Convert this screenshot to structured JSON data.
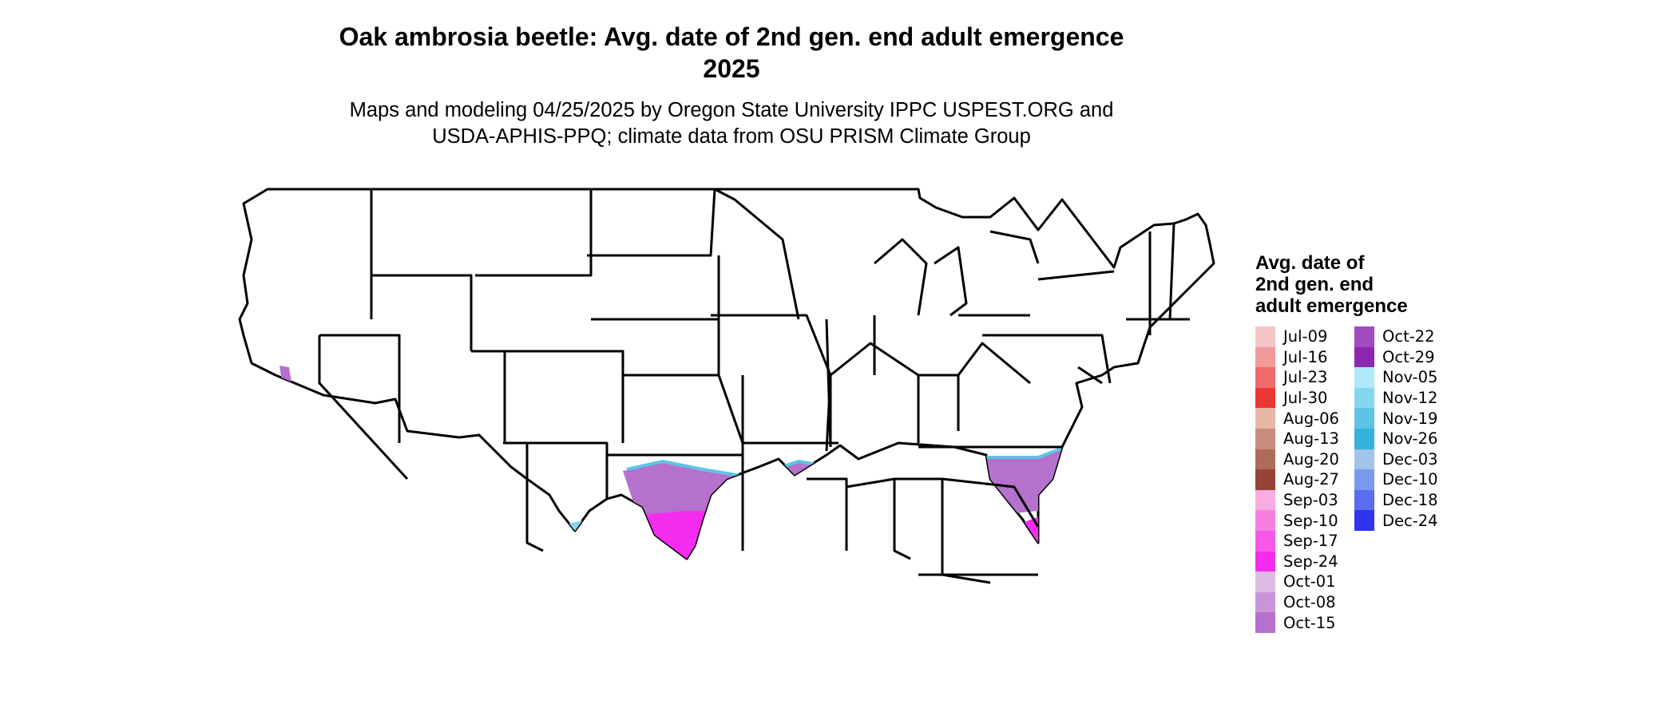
{
  "title": {
    "line1": "Oak ambrosia beetle: Avg. date of 2nd gen. end adult emergence",
    "line2": "2025"
  },
  "subtitle": {
    "line1": "Maps and modeling 04/25/2025 by Oregon State University IPPC USPEST.ORG and",
    "line2": "USDA-APHIS-PPQ; climate data from OSU PRISM Climate Group"
  },
  "legend": {
    "title": "Avg. date of\n2nd gen. end\nadult emergence",
    "items": [
      {
        "label": "Jul-09",
        "color": "#f4c6c6"
      },
      {
        "label": "Jul-16",
        "color": "#f29a9a"
      },
      {
        "label": "Jul-23",
        "color": "#ef6b6b"
      },
      {
        "label": "Jul-30",
        "color": "#ec3535"
      },
      {
        "label": "Aug-06",
        "color": "#e7b6a5"
      },
      {
        "label": "Aug-13",
        "color": "#c98d7f"
      },
      {
        "label": "Aug-20",
        "color": "#b06a5a"
      },
      {
        "label": "Aug-27",
        "color": "#944436"
      },
      {
        "label": "Sep-03",
        "color": "#f9acdf"
      },
      {
        "label": "Sep-10",
        "color": "#f77fe2"
      },
      {
        "label": "Sep-17",
        "color": "#f659e8"
      },
      {
        "label": "Sep-24",
        "color": "#f52cf0"
      },
      {
        "label": "Oct-01",
        "color": "#dcbbe2"
      },
      {
        "label": "Oct-08",
        "color": "#c896d6"
      },
      {
        "label": "Oct-15",
        "color": "#b571cb"
      },
      {
        "label": "Oct-22",
        "color": "#a14bbd"
      },
      {
        "label": "Oct-29",
        "color": "#8d27af"
      },
      {
        "label": "Nov-05",
        "color": "#aee8f9"
      },
      {
        "label": "Nov-12",
        "color": "#86d6f1"
      },
      {
        "label": "Nov-19",
        "color": "#5ec4e6"
      },
      {
        "label": "Nov-26",
        "color": "#34b2dd"
      },
      {
        "label": "Dec-03",
        "color": "#a3c3ea"
      },
      {
        "label": "Dec-10",
        "color": "#7a99ee"
      },
      {
        "label": "Dec-18",
        "color": "#5a6cf0"
      },
      {
        "label": "Dec-24",
        "color": "#2f33f2"
      }
    ]
  }
}
